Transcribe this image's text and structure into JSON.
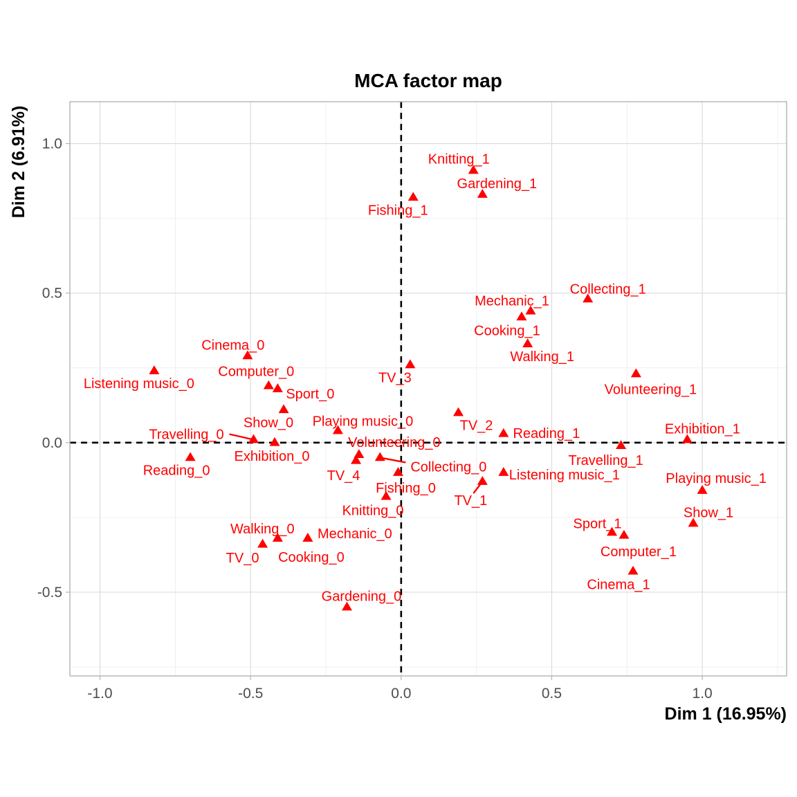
{
  "chart_data": {
    "type": "scatter",
    "title": "MCA factor map",
    "xlabel": "Dim 1 (16.95%)",
    "ylabel": "Dim 2 (6.91%)",
    "xlim": [
      -1.1,
      1.28
    ],
    "ylim": [
      -0.78,
      1.14
    ],
    "xticks": [
      -1.0,
      -0.5,
      0.0,
      0.5,
      1.0
    ],
    "xtick_labels": [
      "-1.0",
      "-0.5",
      "0.0",
      "0.5",
      "1.0"
    ],
    "yticks": [
      -0.5,
      0.0,
      0.5,
      1.0
    ],
    "ytick_labels": [
      "-0.5",
      "0.0",
      "0.5",
      "1.0"
    ],
    "grid": true,
    "legend": "none",
    "reference_lines": {
      "x": 0,
      "y": 0,
      "style": "dashed"
    },
    "marker": "triangle",
    "color": "#ff0000",
    "points": [
      {
        "label": "Knitting_1",
        "x": 0.24,
        "y": 0.91
      },
      {
        "label": "Gardening_1",
        "x": 0.27,
        "y": 0.83
      },
      {
        "label": "Fishing_1",
        "x": 0.04,
        "y": 0.82
      },
      {
        "label": "Collecting_1",
        "x": 0.62,
        "y": 0.48
      },
      {
        "label": "Mechanic_1",
        "x": 0.43,
        "y": 0.44
      },
      {
        "label": "Cooking_1",
        "x": 0.4,
        "y": 0.42
      },
      {
        "label": "Walking_1",
        "x": 0.42,
        "y": 0.33
      },
      {
        "label": "Volunteering_1",
        "x": 0.78,
        "y": 0.23
      },
      {
        "label": "TV_3",
        "x": 0.03,
        "y": 0.26
      },
      {
        "label": "Cinema_0",
        "x": -0.51,
        "y": 0.29
      },
      {
        "label": "Listening music_0",
        "x": -0.82,
        "y": 0.24
      },
      {
        "label": "Computer_0",
        "x": -0.44,
        "y": 0.19
      },
      {
        "label": "Sport_0",
        "x": -0.41,
        "y": 0.18
      },
      {
        "label": "Show_0",
        "x": -0.39,
        "y": 0.11
      },
      {
        "label": "Playing music_0",
        "x": -0.21,
        "y": 0.04
      },
      {
        "label": "TV_2",
        "x": 0.19,
        "y": 0.1
      },
      {
        "label": "Reading_1",
        "x": 0.34,
        "y": 0.03
      },
      {
        "label": "Exhibition_1",
        "x": 0.95,
        "y": 0.01
      },
      {
        "label": "Travelling_0",
        "x": -0.49,
        "y": 0.01
      },
      {
        "label": "Exhibition_0",
        "x": -0.42,
        "y": 0.0
      },
      {
        "label": "Volunteering_0",
        "x": -0.14,
        "y": -0.04
      },
      {
        "label": "Travelling_1",
        "x": 0.73,
        "y": -0.01
      },
      {
        "label": "Reading_0",
        "x": -0.7,
        "y": -0.05
      },
      {
        "label": "Collecting_0",
        "x": -0.07,
        "y": -0.05
      },
      {
        "label": "TV_4",
        "x": -0.15,
        "y": -0.06
      },
      {
        "label": "Fishing_0",
        "x": -0.01,
        "y": -0.1
      },
      {
        "label": "Listening music_1",
        "x": 0.34,
        "y": -0.1
      },
      {
        "label": "TV_1",
        "x": 0.27,
        "y": -0.13
      },
      {
        "label": "Playing music_1",
        "x": 1.0,
        "y": -0.16
      },
      {
        "label": "Knitting_0",
        "x": -0.05,
        "y": -0.18
      },
      {
        "label": "Show_1",
        "x": 0.97,
        "y": -0.27
      },
      {
        "label": "Sport_1",
        "x": 0.7,
        "y": -0.3
      },
      {
        "label": "Computer_1",
        "x": 0.74,
        "y": -0.31
      },
      {
        "label": "Walking_0",
        "x": -0.41,
        "y": -0.32
      },
      {
        "label": "Mechanic_0",
        "x": -0.31,
        "y": -0.32
      },
      {
        "label": "TV_0",
        "x": -0.46,
        "y": -0.34
      },
      {
        "label": "Cooking_0",
        "x": -0.31,
        "y": -0.32
      },
      {
        "label": "Cinema_1",
        "x": 0.77,
        "y": -0.43
      },
      {
        "label": "Gardening_0",
        "x": -0.18,
        "y": -0.55
      }
    ]
  }
}
